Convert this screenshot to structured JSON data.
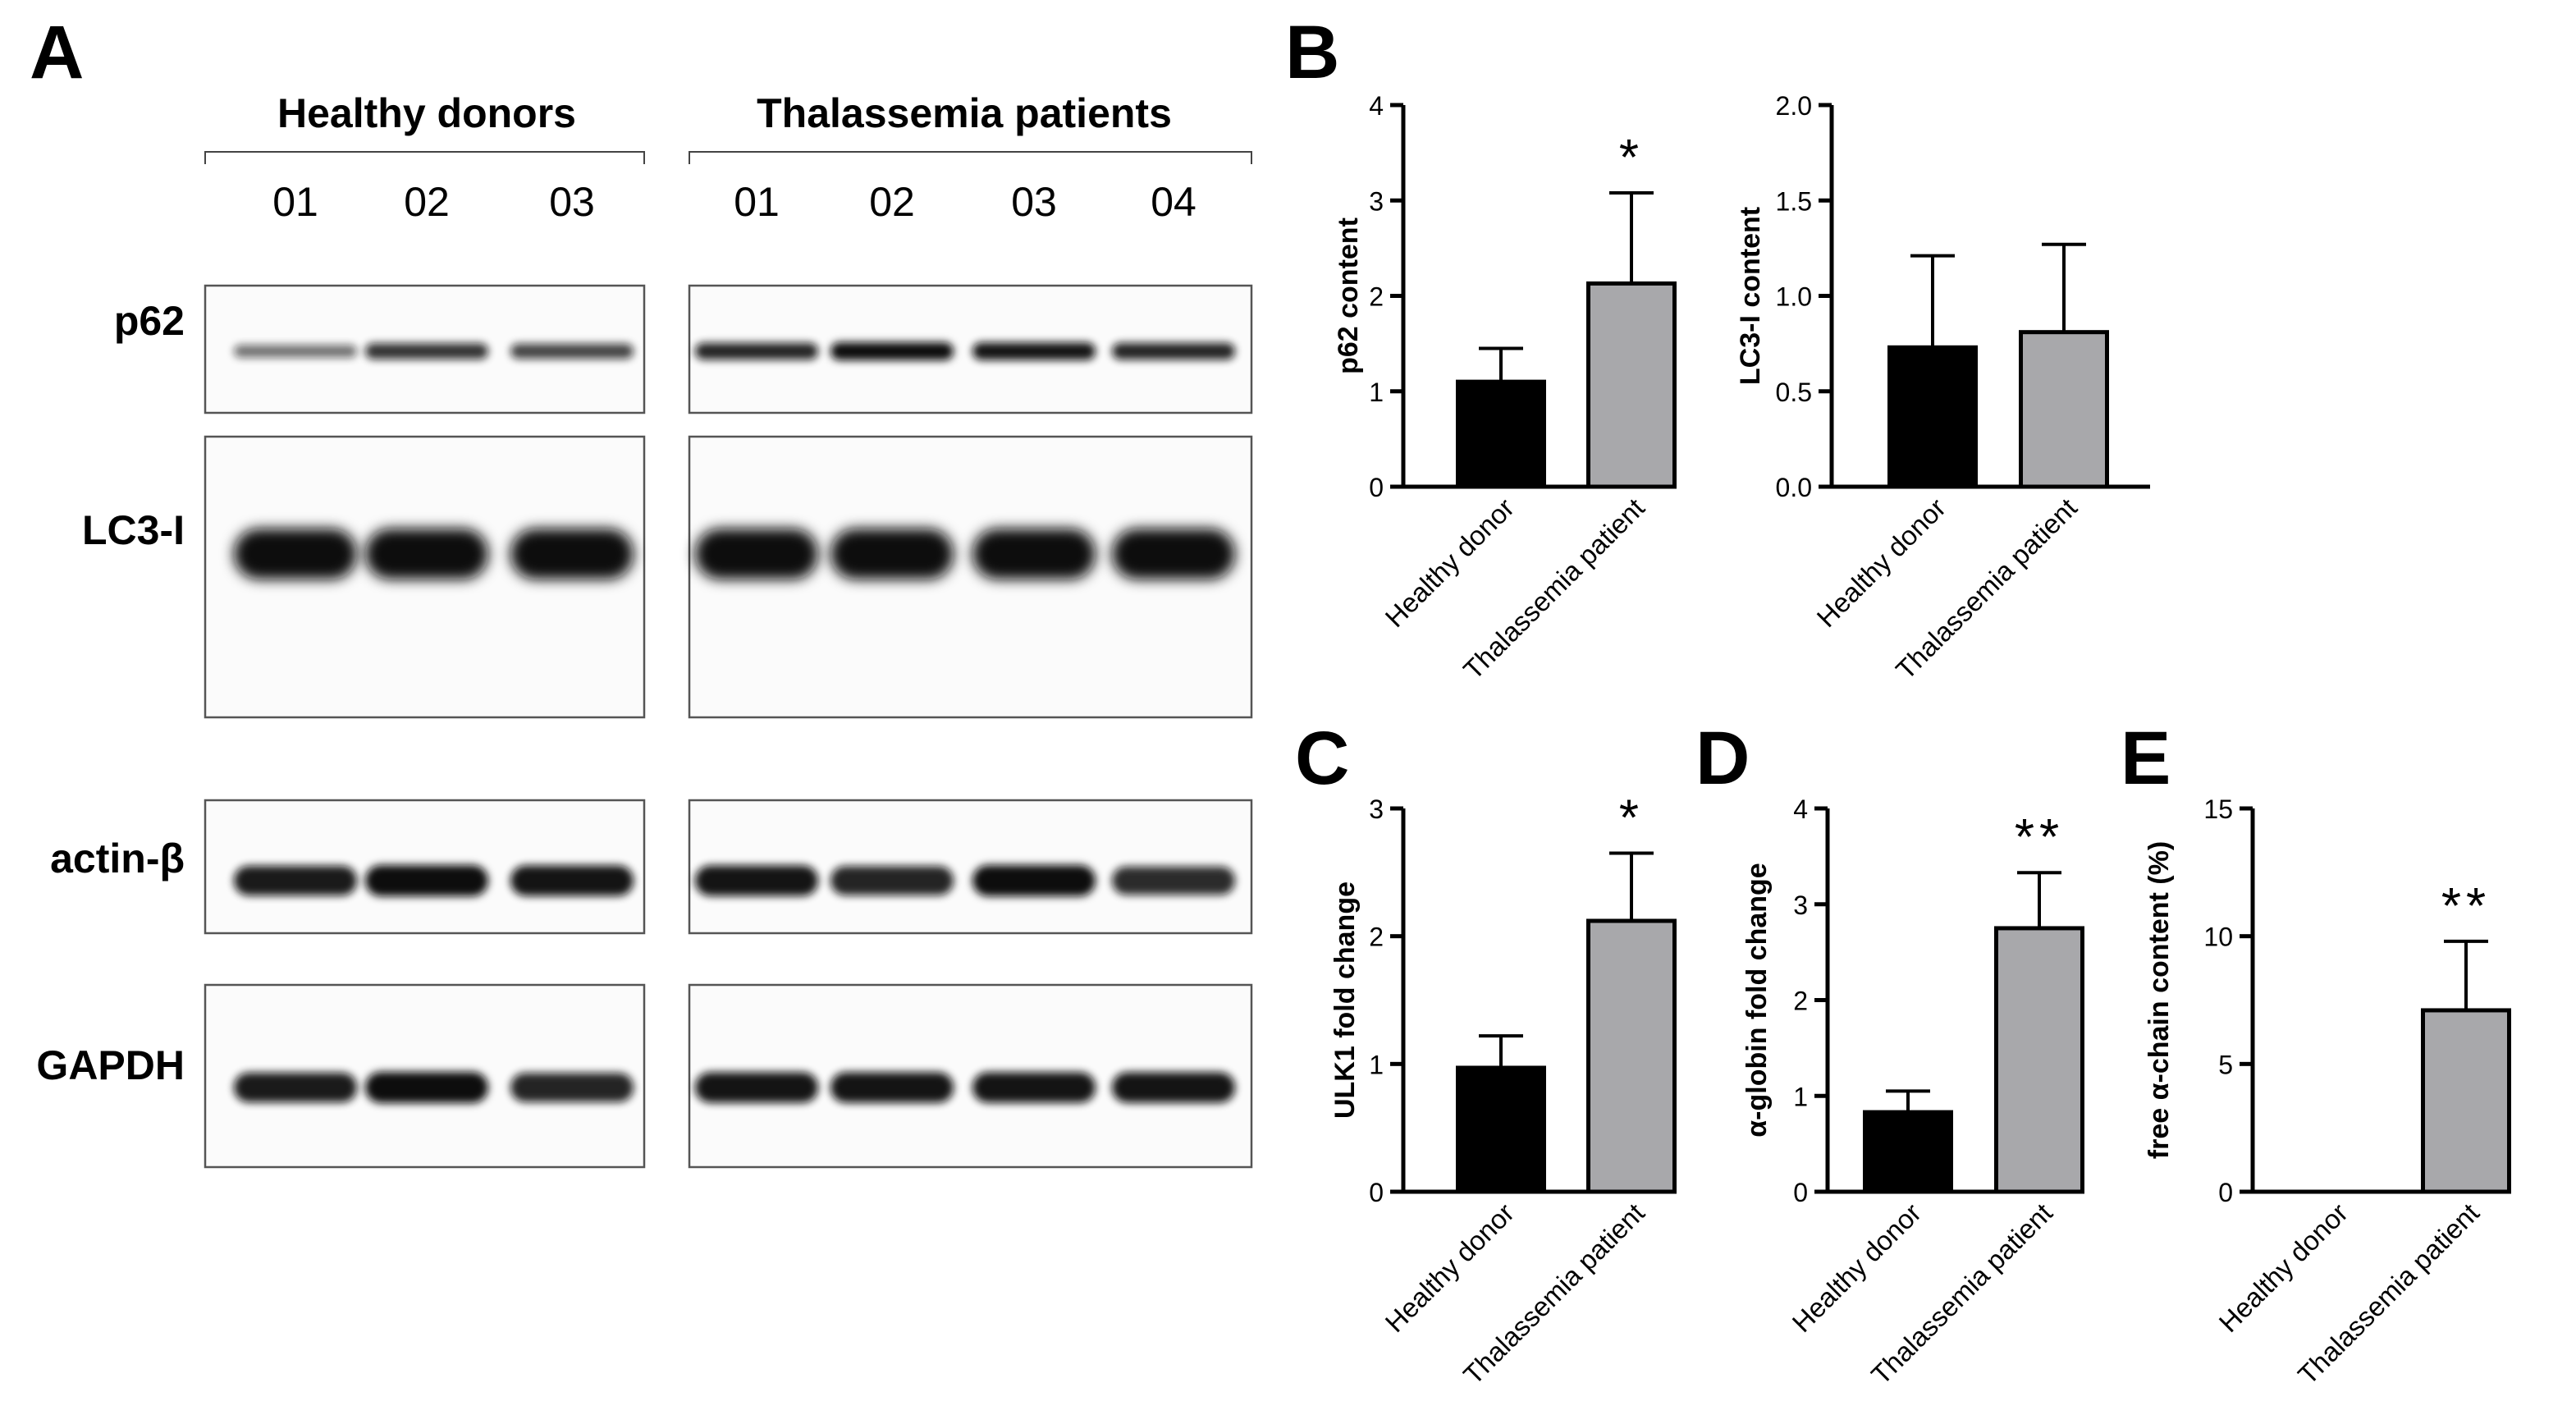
{
  "panels": {
    "a": "A",
    "b": "B",
    "c": "C",
    "d": "D",
    "e": "E"
  },
  "blot": {
    "groups": [
      {
        "label": "Healthy donors",
        "lanes": [
          "01",
          "02",
          "03"
        ]
      },
      {
        "label": "Thalassemia patients",
        "lanes": [
          "01",
          "02",
          "03",
          "04"
        ]
      }
    ],
    "rows": [
      {
        "label": "p62",
        "intensities": [
          [
            0.35,
            0.75,
            0.65
          ],
          [
            0.85,
            1.0,
            0.95,
            0.85
          ]
        ]
      },
      {
        "label": "LC3-I",
        "intensities": [
          [
            1.0,
            1.0,
            1.0
          ],
          [
            1.0,
            1.0,
            1.0,
            1.0
          ]
        ]
      },
      {
        "label": "actin-β",
        "intensities": [
          [
            0.9,
            1.0,
            0.95
          ],
          [
            0.95,
            0.85,
            1.0,
            0.8
          ]
        ]
      },
      {
        "label": "GAPDH",
        "intensities": [
          [
            0.9,
            1.0,
            0.85
          ],
          [
            0.95,
            0.95,
            0.95,
            0.95
          ]
        ]
      }
    ],
    "band_color": "#111111"
  },
  "chart_data": [
    {
      "id": "p62",
      "type": "bar",
      "categories": [
        "Healthy donor",
        "Thalassemia patient"
      ],
      "values": [
        1.1,
        2.13
      ],
      "errors": [
        0.35,
        0.95
      ],
      "colors": [
        "#000000",
        "#a8a8ab"
      ],
      "ylabel": "p62 content",
      "ylim": [
        0,
        4
      ],
      "yticks": [
        "0",
        "1",
        "2",
        "3",
        "4"
      ],
      "significance": [
        "",
        "*"
      ]
    },
    {
      "id": "lc3",
      "type": "bar",
      "categories": [
        "Healthy donor",
        "Thalassemia patient"
      ],
      "values": [
        0.73,
        0.81
      ],
      "errors": [
        0.48,
        0.46
      ],
      "colors": [
        "#000000",
        "#a8a8ab"
      ],
      "ylabel": "LC3-I content",
      "ylim": [
        0,
        2
      ],
      "yticks": [
        "0.0",
        "0.5",
        "1.0",
        "1.5",
        "2.0"
      ],
      "significance": [
        "",
        ""
      ]
    },
    {
      "id": "ulk1",
      "type": "bar",
      "categories": [
        "Healthy donor",
        "Thalassemia patient"
      ],
      "values": [
        0.97,
        2.12
      ],
      "errors": [
        0.25,
        0.53
      ],
      "colors": [
        "#000000",
        "#a8a8ab"
      ],
      "ylabel": "ULK1 fold change",
      "ylim": [
        0,
        3
      ],
      "yticks": [
        "0",
        "1",
        "2",
        "3"
      ],
      "significance": [
        "",
        "*"
      ]
    },
    {
      "id": "aglobin",
      "type": "bar",
      "categories": [
        "Healthy donor",
        "Thalassemia patient"
      ],
      "values": [
        0.83,
        2.75
      ],
      "errors": [
        0.22,
        0.58
      ],
      "colors": [
        "#000000",
        "#a8a8ab"
      ],
      "ylabel": "α-globin fold change",
      "ylim": [
        0,
        4
      ],
      "yticks": [
        "0",
        "1",
        "2",
        "3",
        "4"
      ],
      "significance": [
        "",
        "**"
      ]
    },
    {
      "id": "freealpha",
      "type": "bar",
      "categories": [
        "Healthy donor",
        "Thalassemia patient"
      ],
      "values": [
        0,
        7.1
      ],
      "errors": [
        0,
        2.7
      ],
      "colors": [
        "#000000",
        "#a8a8ab"
      ],
      "ylabel": "free α-chain content (%)",
      "ylim": [
        0,
        15
      ],
      "yticks": [
        "0",
        "5",
        "10",
        "15"
      ],
      "significance": [
        "",
        "**"
      ]
    }
  ]
}
